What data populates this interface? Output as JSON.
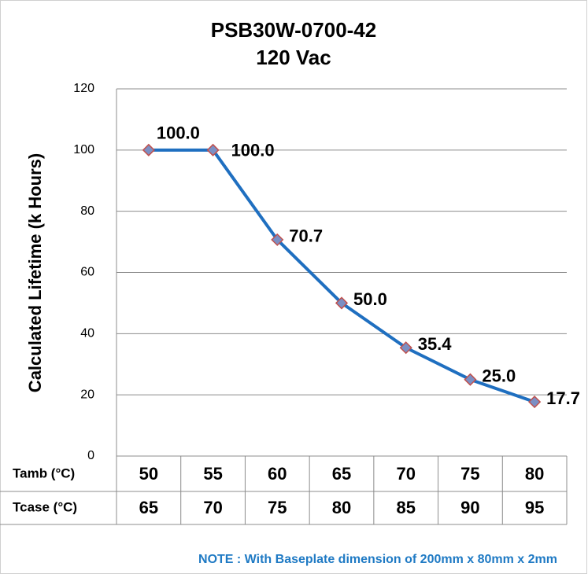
{
  "chart_data": {
    "type": "line",
    "title": "PSB30W-0700-42",
    "subtitle": "120 Vac",
    "y_label": "Calculated Lifetime (k Hours)",
    "row_labels": [
      "Tamb (°C)",
      "Tcase (°C)"
    ],
    "categories": [
      "50",
      "55",
      "60",
      "65",
      "70",
      "75",
      "80"
    ],
    "tcase": [
      "65",
      "70",
      "75",
      "80",
      "85",
      "90",
      "95"
    ],
    "series": [
      {
        "name": "Lifetime",
        "color": "#1f6fc0",
        "values": [
          100,
          100,
          70.7,
          50,
          35.4,
          25,
          17.7
        ],
        "value_labels": [
          "100.0",
          "100.0",
          "70.7",
          "50.0",
          "35.4",
          "25.0",
          "17.7"
        ]
      }
    ],
    "marker_color": "#7b8fc4",
    "marker_edge": "#c0504d",
    "ylim": [
      0,
      120
    ],
    "yticks": [
      0,
      20,
      40,
      60,
      80,
      100,
      120
    ],
    "grid": true,
    "note": "NOTE : With Baseplate dimension of 200mm x 80mm x 2mm"
  }
}
